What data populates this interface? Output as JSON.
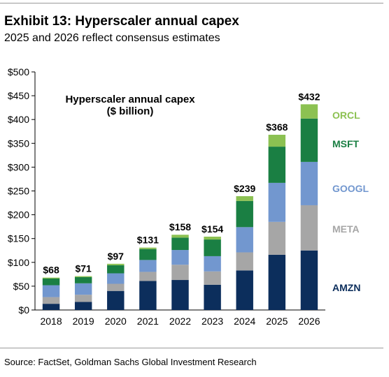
{
  "header": {
    "title": "Exhibit 13: Hyperscaler annual capex",
    "subtitle": "2025 and 2026 reflect consensus estimates"
  },
  "footer": {
    "source": "Source: FactSet, Goldman Sachs Global Investment Research"
  },
  "chart_data": {
    "type": "bar",
    "stacked": true,
    "title": "Hyperscaler annual capex",
    "subtitle": "($ billion)",
    "categories": [
      "2018",
      "2019",
      "2020",
      "2021",
      "2022",
      "2023",
      "2024",
      "2025",
      "2026"
    ],
    "series": [
      {
        "name": "AMZN",
        "color": "#0c2e5c",
        "values": [
          13,
          17,
          40,
          61,
          63,
          53,
          83,
          116,
          125
        ]
      },
      {
        "name": "META",
        "color": "#a6a6a6",
        "values": [
          14,
          15,
          15,
          19,
          32,
          28,
          38,
          69,
          95
        ]
      },
      {
        "name": "GOOGL",
        "color": "#7297cf",
        "values": [
          25,
          24,
          22,
          25,
          31,
          32,
          53,
          82,
          91
        ]
      },
      {
        "name": "MSFT",
        "color": "#1a7f43",
        "values": [
          14,
          13,
          17,
          23,
          26,
          35,
          55,
          76,
          91
        ]
      },
      {
        "name": "ORCL",
        "color": "#8cc152",
        "values": [
          2,
          2,
          3,
          3,
          6,
          6,
          10,
          25,
          30
        ]
      }
    ],
    "totals": [
      68,
      71,
      97,
      131,
      158,
      154,
      239,
      368,
      432
    ],
    "total_labels": [
      "$68",
      "$71",
      "$97",
      "$131",
      "$158",
      "$154",
      "$239",
      "$368",
      "$432"
    ],
    "yticks": [
      0,
      50,
      100,
      150,
      200,
      250,
      300,
      350,
      400,
      450,
      500
    ],
    "ytick_labels": [
      "$0",
      "$50",
      "$100",
      "$150",
      "$200",
      "$250",
      "$300",
      "$350",
      "$400",
      "$450",
      "$500"
    ],
    "ylim": [
      0,
      500
    ],
    "grid": false,
    "legend": "right, labels aligned to series"
  }
}
